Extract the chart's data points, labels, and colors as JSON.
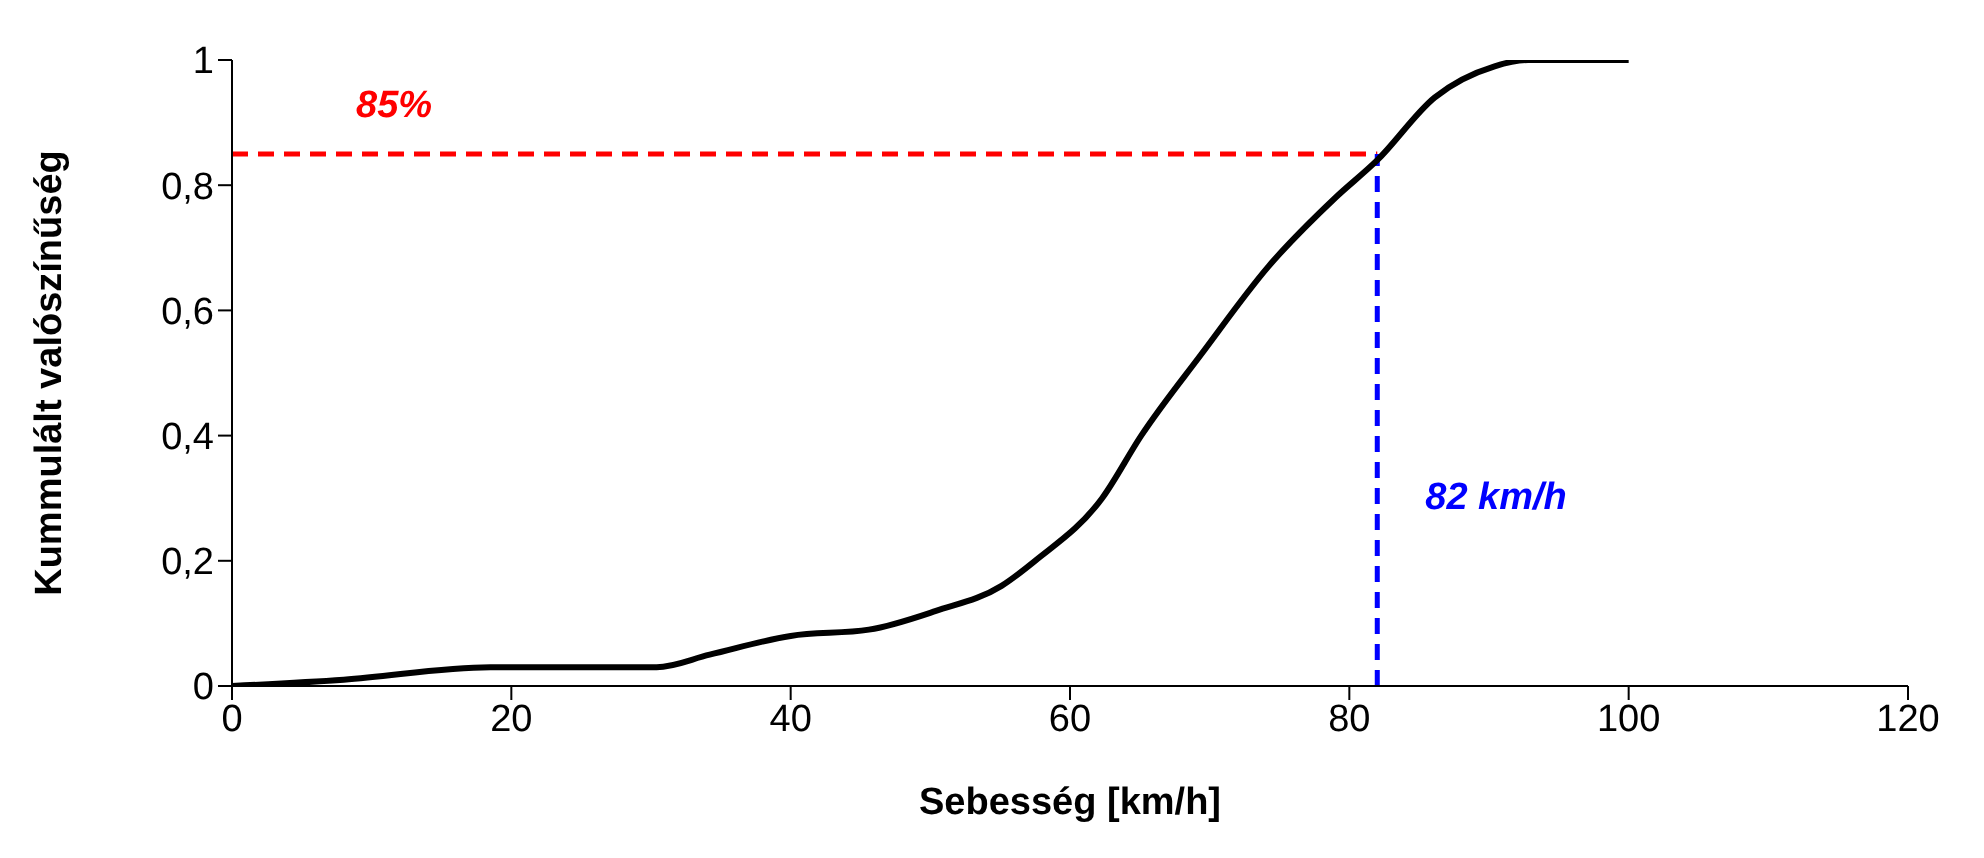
{
  "chart_data": {
    "type": "line",
    "xlabel": "Sebesség [km/h]",
    "ylabel": "Kummulált valószínűség",
    "x": [
      0,
      8,
      18.5,
      30.4,
      34.2,
      40,
      45.6,
      50.4,
      55.1,
      57.5,
      62.3,
      65.1,
      69.4,
      74.2,
      79,
      82,
      86.1,
      90.4,
      92.8,
      100
    ],
    "series": [
      {
        "color": "#000000",
        "values": [
          0,
          0.01,
          0.03,
          0.03,
          0.05,
          0.08,
          0.09,
          0.12,
          0.16,
          0.2,
          0.3,
          0.4,
          0.53,
          0.67,
          0.78,
          0.84,
          0.94,
          0.99,
          1,
          1
        ]
      }
    ],
    "xlim": [
      0,
      120
    ],
    "xticks": [
      0,
      20,
      40,
      60,
      80,
      100,
      120
    ],
    "ylim": [
      0,
      1
    ],
    "yticks": [
      0,
      {
        "value": 0.2,
        "label": "0,2"
      },
      {
        "value": 0.4,
        "label": "0,4"
      },
      {
        "value": 0.6,
        "label": "0,6"
      },
      {
        "value": 0.8,
        "label": "0,8"
      },
      1
    ],
    "grid": false,
    "legend": false,
    "marker": "none",
    "line_style": "solid",
    "ref_lines": [
      {
        "axis": "y",
        "value": 0.85,
        "label": "85%",
        "color": "#ff0000",
        "line_style": "dashed"
      },
      {
        "axis": "x",
        "value": 82,
        "label": "82 km/h",
        "color": "#0000ff",
        "line_style": "dashed"
      }
    ]
  }
}
